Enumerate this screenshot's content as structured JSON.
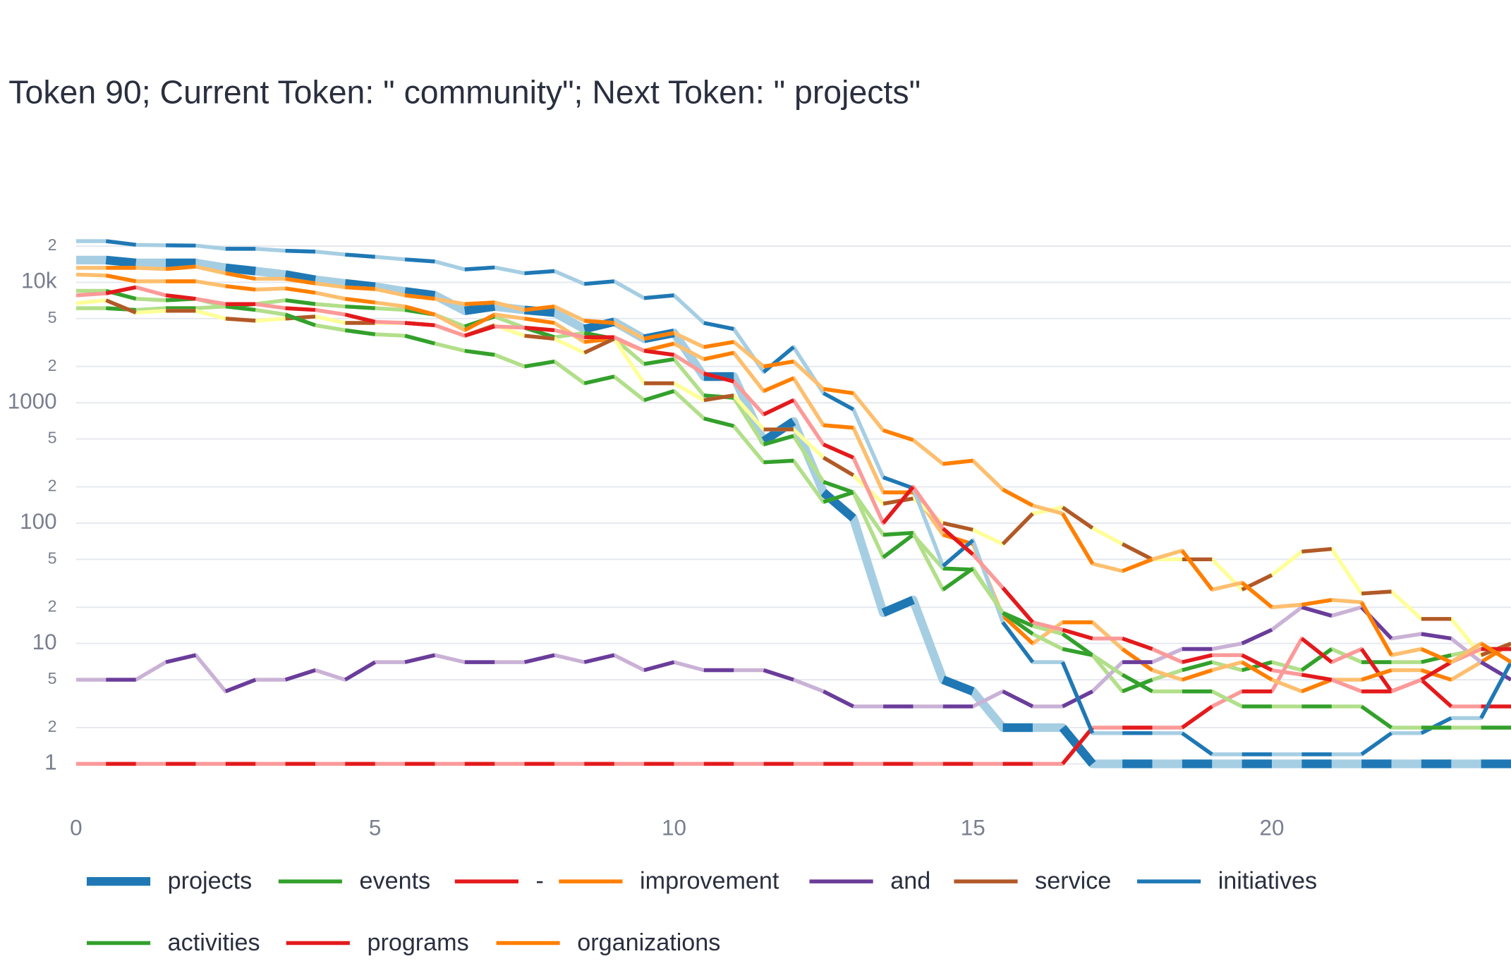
{
  "chart_data": {
    "type": "line",
    "title": "Token 90; Current Token: \" community\"; Next Token: \" projects\"",
    "x": [
      0,
      0.5,
      1,
      1.5,
      2,
      2.5,
      3,
      3.5,
      4,
      4.5,
      5,
      5.5,
      6,
      6.5,
      7,
      7.5,
      8,
      8.5,
      9,
      9.5,
      10,
      10.5,
      11,
      11.5,
      12,
      12.5,
      13,
      13.5,
      14,
      14.5,
      15,
      15.5,
      16,
      16.5,
      17,
      17.5,
      18,
      18.5,
      19,
      19.5,
      20,
      20.5,
      21,
      21.5,
      22,
      22.5,
      23,
      23.5,
      24
    ],
    "xlim": [
      0,
      24
    ],
    "xticks": [
      0,
      5,
      10,
      15,
      20
    ],
    "log_y": true,
    "ylim": [
      0.5,
      32000
    ],
    "yticks": [
      1,
      {
        "value": 2,
        "label": "2"
      },
      {
        "value": 5,
        "label": "5"
      },
      10,
      {
        "value": 20,
        "label": "2"
      },
      {
        "value": 50,
        "label": "5"
      },
      100,
      {
        "value": 200,
        "label": "2"
      },
      {
        "value": 500,
        "label": "5"
      },
      1000,
      {
        "value": 2000,
        "label": "2"
      },
      {
        "value": 5000,
        "label": "5"
      },
      {
        "value": 10000,
        "label": "10k"
      },
      {
        "value": 20000,
        "label": "2"
      }
    ],
    "grid": true,
    "series": [
      {
        "name": "projects",
        "color": "#1f78b4",
        "light_color": "#a6cee3",
        "width": 9,
        "values": [
          15300,
          15300,
          14500,
          14500,
          14500,
          13200,
          12400,
          11600,
          10500,
          9800,
          9200,
          8400,
          7800,
          5800,
          6300,
          5900,
          5600,
          4100,
          4700,
          3400,
          3800,
          1650,
          1650,
          480,
          700,
          180,
          110,
          18,
          23,
          5,
          4,
          2,
          2,
          2,
          1,
          1,
          1,
          1,
          1,
          1,
          1,
          1,
          1,
          1,
          1,
          1,
          1,
          1,
          1
        ]
      },
      {
        "name": "events",
        "color": "#33a02c",
        "light_color": "#b2df8a",
        "width": 4,
        "values": [
          6100,
          6100,
          5900,
          6100,
          6100,
          6300,
          6600,
          7100,
          6600,
          6300,
          6100,
          5900,
          5400,
          4300,
          5200,
          4200,
          3500,
          3800,
          3400,
          2100,
          2300,
          1150,
          1100,
          450,
          530,
          220,
          180,
          52,
          80,
          42,
          41,
          18,
          14,
          12,
          8,
          4,
          5,
          6,
          7,
          6,
          7,
          6,
          9,
          7,
          7,
          7,
          8,
          9,
          9
        ]
      },
      {
        "name": "-",
        "color": "#e31a1c",
        "light_color": "#fb9a99",
        "width": 4,
        "values": [
          1,
          1,
          1,
          1,
          1,
          1,
          1,
          1,
          1,
          1,
          1,
          1,
          1,
          1,
          1,
          1,
          1,
          1,
          1,
          1,
          1,
          1,
          1,
          1,
          1,
          1,
          1,
          1,
          1,
          1,
          1,
          1,
          1,
          1,
          2,
          2,
          2,
          2,
          3,
          4,
          4,
          11,
          7,
          9,
          4,
          5,
          3,
          3,
          3
        ]
      },
      {
        "name": "improvement",
        "color": "#ff7f00",
        "light_color": "#fdbf6f",
        "width": 4,
        "values": [
          11600,
          11400,
          10200,
          10200,
          10200,
          9300,
          8700,
          8900,
          8200,
          7300,
          6800,
          6300,
          5400,
          4000,
          5400,
          5000,
          4600,
          3200,
          3400,
          2700,
          3100,
          2300,
          2600,
          1250,
          1600,
          650,
          620,
          180,
          180,
          80,
          67,
          17,
          10,
          15,
          15,
          9,
          6,
          5,
          6,
          7,
          5,
          4,
          5,
          5,
          6,
          6,
          5,
          7,
          10
        ]
      },
      {
        "name": "and",
        "color": "#6a3d9a",
        "light_color": "#cab2d6",
        "width": 4,
        "values": [
          5,
          5,
          5,
          7,
          8,
          4,
          5,
          5,
          6,
          5,
          7,
          7,
          8,
          7,
          7,
          7,
          8,
          7,
          8,
          6,
          7,
          6,
          6,
          6,
          5,
          4,
          3,
          3,
          3,
          3,
          3,
          4,
          3,
          3,
          4,
          7,
          7,
          9,
          9,
          10,
          13,
          20,
          17,
          20,
          11,
          12,
          11,
          7,
          5
        ]
      },
      {
        "name": "service",
        "color": "#b15928",
        "light_color": "#ffff99",
        "width": 4,
        "values": [
          6700,
          7100,
          5600,
          5800,
          5800,
          5000,
          4800,
          5000,
          5200,
          4600,
          4600,
          4600,
          4400,
          3600,
          4400,
          3600,
          3400,
          2600,
          3400,
          1450,
          1450,
          1050,
          1150,
          600,
          600,
          350,
          250,
          145,
          160,
          100,
          88,
          67,
          120,
          135,
          91,
          67,
          50,
          50,
          50,
          28,
          37,
          58,
          61,
          26,
          27,
          16,
          16,
          8,
          10
        ]
      },
      {
        "name": "initiatives",
        "color": "#1f78b4",
        "light_color": "#a6cee3",
        "width": 4,
        "values": [
          22000,
          22000,
          20500,
          20300,
          20200,
          19000,
          19000,
          18300,
          18000,
          17000,
          16300,
          15500,
          14900,
          12800,
          13300,
          11900,
          12400,
          9700,
          10200,
          7400,
          7800,
          4600,
          4100,
          1800,
          2900,
          1200,
          880,
          240,
          195,
          44,
          72,
          15,
          7,
          7,
          1.8,
          1.8,
          1.8,
          1.8,
          1.2,
          1.2,
          1.2,
          1.2,
          1.2,
          1.2,
          1.8,
          1.8,
          2.4,
          2.4,
          7
        ]
      },
      {
        "name": "activities",
        "color": "#33a02c",
        "light_color": "#b2df8a",
        "width": 4,
        "values": [
          8500,
          8500,
          7300,
          7100,
          7300,
          6300,
          5900,
          5400,
          4400,
          4000,
          3700,
          3600,
          3100,
          2700,
          2500,
          2000,
          2200,
          1450,
          1650,
          1050,
          1250,
          740,
          640,
          320,
          330,
          150,
          180,
          80,
          83,
          28,
          42,
          18,
          12,
          9,
          8,
          5.5,
          4,
          4,
          4,
          3,
          3,
          3,
          3,
          3,
          2,
          2,
          2,
          2,
          2
        ]
      },
      {
        "name": "programs",
        "color": "#e31a1c",
        "light_color": "#fb9a99",
        "width": 4,
        "values": [
          7800,
          8100,
          9100,
          7800,
          7300,
          6600,
          6600,
          6100,
          5900,
          5400,
          4700,
          4600,
          4400,
          3600,
          4300,
          4200,
          4000,
          3500,
          3500,
          2700,
          2500,
          1750,
          1500,
          800,
          1050,
          450,
          350,
          100,
          200,
          90,
          55,
          29,
          15,
          13,
          11,
          11,
          9,
          7,
          8,
          8,
          6,
          5.5,
          5,
          4,
          4,
          5,
          7,
          9,
          9
        ]
      },
      {
        "name": "organizations",
        "color": "#ff7f00",
        "light_color": "#fdbf6f",
        "width": 4,
        "values": [
          13200,
          13200,
          13200,
          12900,
          13500,
          11900,
          10700,
          10700,
          9800,
          9100,
          8800,
          7800,
          7300,
          6600,
          6800,
          5900,
          6300,
          4800,
          4600,
          3400,
          3800,
          2900,
          3200,
          2000,
          2200,
          1300,
          1200,
          590,
          490,
          310,
          330,
          190,
          140,
          120,
          46,
          40,
          50,
          59,
          28,
          32,
          20,
          21,
          23,
          22,
          8,
          9,
          7,
          10,
          7
        ]
      }
    ]
  }
}
